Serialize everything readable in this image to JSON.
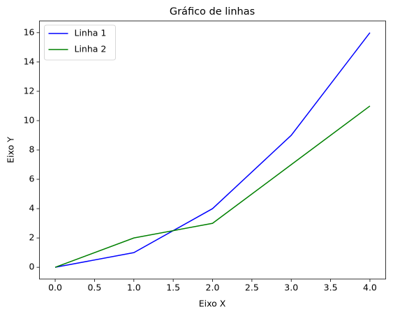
{
  "chart_data": {
    "type": "line",
    "title": "Gráfico de linhas",
    "x_label": "Eixo X",
    "y_label": "Eixo Y",
    "x": [
      0,
      1,
      2,
      3,
      4
    ],
    "series": [
      {
        "name": "Linha 1",
        "color": "#0000ff",
        "values": [
          0,
          1,
          4,
          9,
          16
        ]
      },
      {
        "name": "Linha 2",
        "color": "#008000",
        "values": [
          0,
          2,
          3,
          7,
          11
        ]
      }
    ],
    "xlim": [
      -0.2,
      4.2
    ],
    "xticks": [
      {
        "value": 0,
        "label": "0.0"
      },
      0.5,
      {
        "value": 1,
        "label": "1.0"
      },
      1.5,
      {
        "value": 2,
        "label": "2.0"
      },
      2.5,
      {
        "value": 3,
        "label": "3.0"
      },
      3.5,
      {
        "value": 4,
        "label": "4.0"
      }
    ],
    "ylim": [
      -0.8,
      16.8
    ],
    "yticks": [
      0,
      2,
      4,
      6,
      8,
      10,
      12,
      14,
      16
    ],
    "grid": false,
    "legend": "upper left"
  }
}
